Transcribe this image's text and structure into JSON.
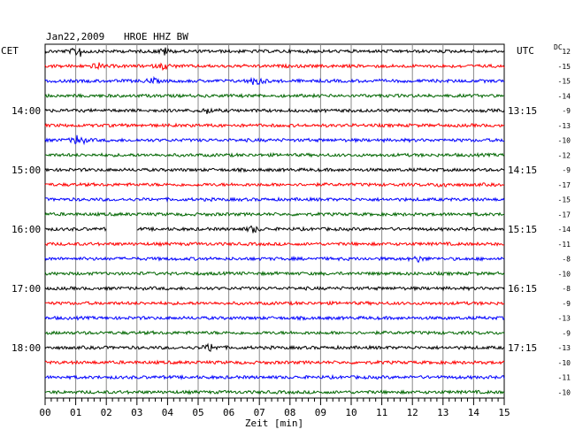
{
  "chart_data": {
    "type": "line",
    "title": "Jan22,2009",
    "station": "HROE HHZ BW",
    "left_zone": "CET",
    "right_zone": "UTC",
    "dc_header": "DC",
    "xlabel": "Zeit [min]",
    "xlim": [
      0,
      15
    ],
    "x_ticks": [
      "00",
      "01",
      "02",
      "03",
      "04",
      "05",
      "06",
      "07",
      "08",
      "09",
      "10",
      "11",
      "12",
      "13",
      "14",
      "15"
    ],
    "left_hour_labels": [
      {
        "trace": 4,
        "label": "14:00"
      },
      {
        "trace": 8,
        "label": "15:00"
      },
      {
        "trace": 12,
        "label": "16:00"
      },
      {
        "trace": 16,
        "label": "17:00"
      },
      {
        "trace": 20,
        "label": "18:00"
      }
    ],
    "right_hour_labels": [
      {
        "trace": 4,
        "label": "13:15"
      },
      {
        "trace": 8,
        "label": "14:15"
      },
      {
        "trace": 12,
        "label": "15:15"
      },
      {
        "trace": 16,
        "label": "16:15"
      },
      {
        "trace": 20,
        "label": "17:15"
      }
    ],
    "trace_colors": [
      "#000000",
      "#ff0000",
      "#0000ff",
      "#006600"
    ],
    "dc_offsets": [
      12,
      -15,
      -15,
      -14,
      -9,
      -13,
      -10,
      -12,
      -9,
      -17,
      -15,
      -17,
      -14,
      -11,
      -8,
      -10,
      -8,
      -9,
      -13,
      -9,
      -13,
      -10,
      -11,
      -10
    ],
    "events": [
      {
        "trace": 0,
        "minute": 1.1,
        "amplitude": 8
      },
      {
        "trace": 0,
        "minute": 3.9,
        "amplitude": 4
      },
      {
        "trace": 1,
        "minute": 1.7,
        "amplitude": 4
      },
      {
        "trace": 1,
        "minute": 3.9,
        "amplitude": 4
      },
      {
        "trace": 2,
        "minute": 3.5,
        "amplitude": 3
      },
      {
        "trace": 2,
        "minute": 6.9,
        "amplitude": 7
      },
      {
        "trace": 4,
        "minute": 5.3,
        "amplitude": 3
      },
      {
        "trace": 6,
        "minute": 1.1,
        "amplitude": 8
      },
      {
        "trace": 9,
        "minute": 13.0,
        "amplitude": 3
      },
      {
        "trace": 12,
        "minute": 6.8,
        "amplitude": 4
      },
      {
        "trace": 14,
        "minute": 12.2,
        "amplitude": 3
      },
      {
        "trace": 20,
        "minute": 5.4,
        "amplitude": 5
      }
    ],
    "gaps": [
      {
        "trace": 12,
        "start": 2.0,
        "end": 3.0
      }
    ]
  }
}
